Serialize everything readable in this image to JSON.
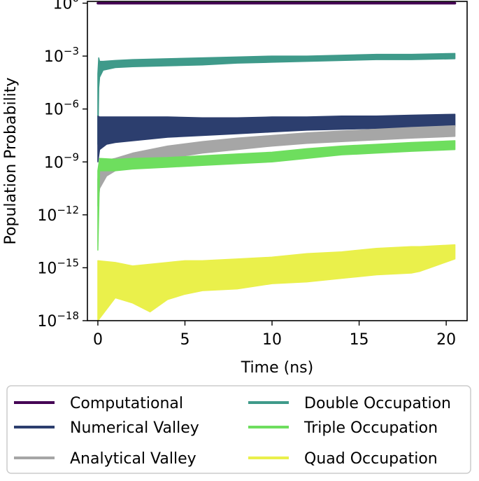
{
  "chart_data": {
    "type": "line",
    "xlabel": "Time (ns)",
    "ylabel": "Population Probability",
    "xlim": [
      -0.6,
      21.2
    ],
    "ylim_log10": [
      -18,
      0.1
    ],
    "y_scale": "log",
    "grid": false,
    "legend_position": "below-plot",
    "x_ticks": [
      {
        "value": 0,
        "label": "0"
      },
      {
        "value": 5,
        "label": "5"
      },
      {
        "value": 10,
        "label": "10"
      },
      {
        "value": 15,
        "label": "15"
      },
      {
        "value": 20,
        "label": "20"
      }
    ],
    "y_ticks": [
      {
        "exp": 0,
        "base": "10",
        "sup": "0"
      },
      {
        "exp": -3,
        "base": "10",
        "sup": "−3"
      },
      {
        "exp": -6,
        "base": "10",
        "sup": "−6"
      },
      {
        "exp": -9,
        "base": "10",
        "sup": "−9"
      },
      {
        "exp": -12,
        "base": "10",
        "sup": "−12"
      },
      {
        "exp": -15,
        "base": "10",
        "sup": "−15"
      },
      {
        "exp": -18,
        "base": "10",
        "sup": "−18"
      }
    ],
    "series": [
      {
        "name": "Computational",
        "color": "#440154",
        "x": [
          0,
          20.5
        ],
        "lo": [
          -0.002,
          -0.002
        ],
        "hi": [
          0.0,
          0.0
        ]
      },
      {
        "name": "Double Occupation",
        "color": "#3f9a8a",
        "x": [
          0,
          0.05,
          0.1,
          0.3,
          1,
          2,
          4,
          6,
          8,
          10,
          12,
          14,
          16,
          18,
          20.5
        ],
        "lo": [
          -8,
          -4.8,
          -4.2,
          -3.8,
          -3.65,
          -3.6,
          -3.55,
          -3.5,
          -3.4,
          -3.35,
          -3.3,
          -3.25,
          -3.2,
          -3.2,
          -3.15
        ],
        "hi": [
          -4,
          -3.1,
          -3.3,
          -3.3,
          -3.25,
          -3.2,
          -3.15,
          -3.1,
          -3.05,
          -3.0,
          -3.0,
          -2.95,
          -2.9,
          -2.9,
          -2.85
        ]
      },
      {
        "name": "Numerical Valley",
        "color": "#2c3e6e",
        "x": [
          0,
          0.1,
          0.5,
          1,
          2,
          4,
          6,
          8,
          10,
          12,
          14,
          16,
          18,
          20.5
        ],
        "lo": [
          -9,
          -8.3,
          -8.0,
          -7.9,
          -7.8,
          -7.6,
          -7.5,
          -7.4,
          -7.3,
          -7.2,
          -7.15,
          -7.1,
          -7.05,
          -7.0
        ],
        "hi": [
          -6.4,
          -6.45,
          -6.45,
          -6.45,
          -6.45,
          -6.45,
          -6.5,
          -6.5,
          -6.45,
          -6.45,
          -6.4,
          -6.4,
          -6.35,
          -6.3
        ]
      },
      {
        "name": "Analytical Valley",
        "color": "#a6a6a6",
        "x": [
          0,
          0.1,
          0.5,
          1,
          2,
          3,
          4,
          6,
          8,
          10,
          12,
          14,
          16,
          18,
          20.5
        ],
        "lo": [
          -11.5,
          -10.5,
          -9.8,
          -9.5,
          -9.2,
          -9.0,
          -8.8,
          -8.5,
          -8.3,
          -8.1,
          -7.95,
          -7.85,
          -7.75,
          -7.65,
          -7.55
        ],
        "hi": [
          -10,
          -9.0,
          -8.9,
          -8.8,
          -8.5,
          -8.3,
          -8.1,
          -7.85,
          -7.65,
          -7.5,
          -7.35,
          -7.25,
          -7.15,
          -7.05,
          -6.95
        ]
      },
      {
        "name": "Triple Occupation",
        "color": "#6ede5e",
        "x": [
          0,
          0.1,
          1,
          2,
          4,
          6,
          8,
          10,
          12,
          14,
          16,
          18,
          20.5
        ],
        "lo": [
          -14,
          -9.5,
          -9.5,
          -9.4,
          -9.3,
          -9.2,
          -9.1,
          -9.0,
          -8.8,
          -8.6,
          -8.5,
          -8.4,
          -8.3
        ],
        "hi": [
          -9.5,
          -8.8,
          -8.85,
          -8.8,
          -8.75,
          -8.65,
          -8.55,
          -8.45,
          -8.25,
          -8.1,
          -8.0,
          -7.9,
          -7.8
        ]
      },
      {
        "name": "Quad Occupation",
        "color": "#eaf04b",
        "x": [
          0,
          1,
          2,
          3,
          4,
          5,
          6,
          8,
          10,
          12,
          14,
          16,
          18,
          18.5,
          20.5
        ],
        "lo": [
          -18,
          -16.7,
          -17.0,
          -17.5,
          -16.8,
          -16.5,
          -16.3,
          -16.2,
          -15.9,
          -15.8,
          -15.6,
          -15.4,
          -15.3,
          -15.2,
          -14.5
        ],
        "hi": [
          -14.6,
          -14.7,
          -14.9,
          -14.8,
          -14.7,
          -14.6,
          -14.6,
          -14.5,
          -14.4,
          -14.2,
          -14.1,
          -13.9,
          -13.8,
          -13.8,
          -13.7
        ]
      }
    ],
    "legend_columns": [
      [
        "Computational",
        "Numerical Valley",
        "Analytical Valley"
      ],
      [
        "Double Occupation",
        "Triple Occupation",
        "Quad Occupation"
      ]
    ]
  }
}
